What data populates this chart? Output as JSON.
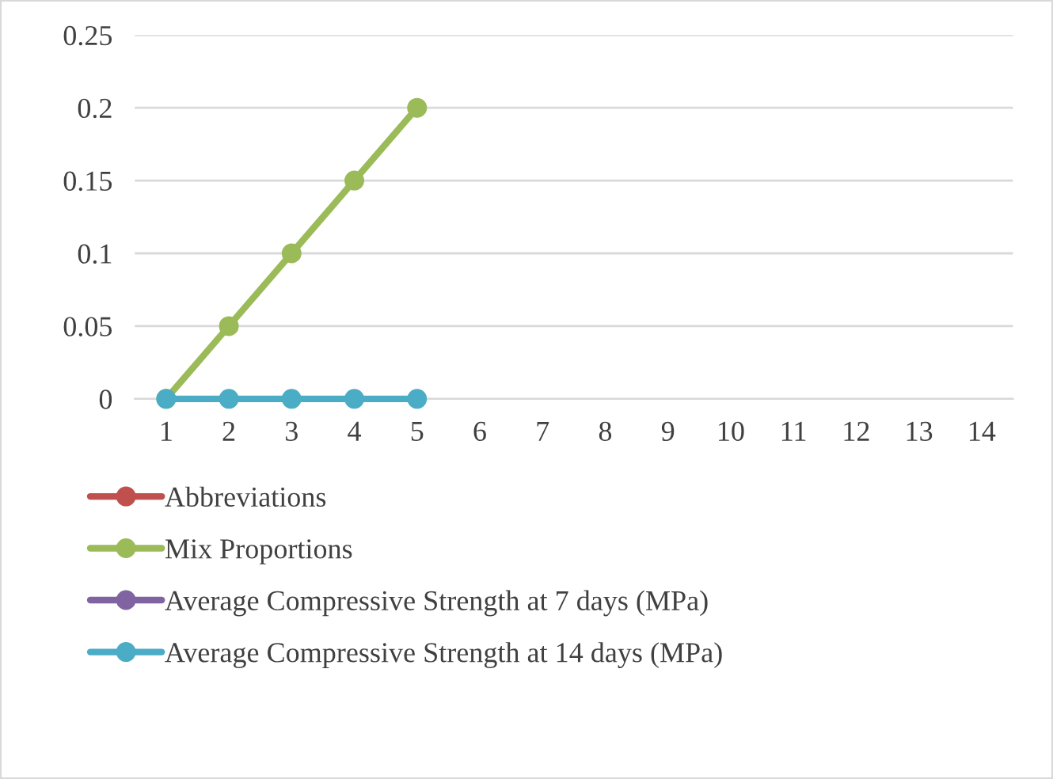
{
  "chart_data": {
    "type": "line",
    "categories": [
      "1",
      "2",
      "3",
      "4",
      "5",
      "6",
      "7",
      "8",
      "9",
      "10",
      "11",
      "12",
      "13",
      "14"
    ],
    "series": [
      {
        "name": "Abbreviations",
        "color": "#c0504d",
        "values": [
          null,
          null,
          null,
          null,
          null,
          null,
          null,
          null,
          null,
          null,
          null,
          null,
          null,
          null
        ]
      },
      {
        "name": "Mix Proportions",
        "color": "#9bbb59",
        "values": [
          0,
          0.05,
          0.1,
          0.15,
          0.2,
          null,
          null,
          null,
          null,
          null,
          null,
          null,
          null,
          null
        ]
      },
      {
        "name": "Average Compressive Strength at 7 days (MPa)",
        "color": "#8064a2",
        "values": [
          null,
          null,
          null,
          null,
          null,
          null,
          null,
          null,
          null,
          null,
          null,
          null,
          null,
          null
        ]
      },
      {
        "name": "Average Compressive Strength at 14 days (MPa)",
        "color": "#4bacc6",
        "values": [
          0,
          0,
          0,
          0,
          0,
          null,
          null,
          null,
          null,
          null,
          null,
          null,
          null,
          null
        ]
      }
    ],
    "ylim": [
      0,
      0.25
    ],
    "yticks": [
      0,
      0.05,
      0.1,
      0.15,
      0.2,
      0.25
    ],
    "grid": "y",
    "legend": "bottom",
    "marker": "circle",
    "line_style": "solid"
  }
}
